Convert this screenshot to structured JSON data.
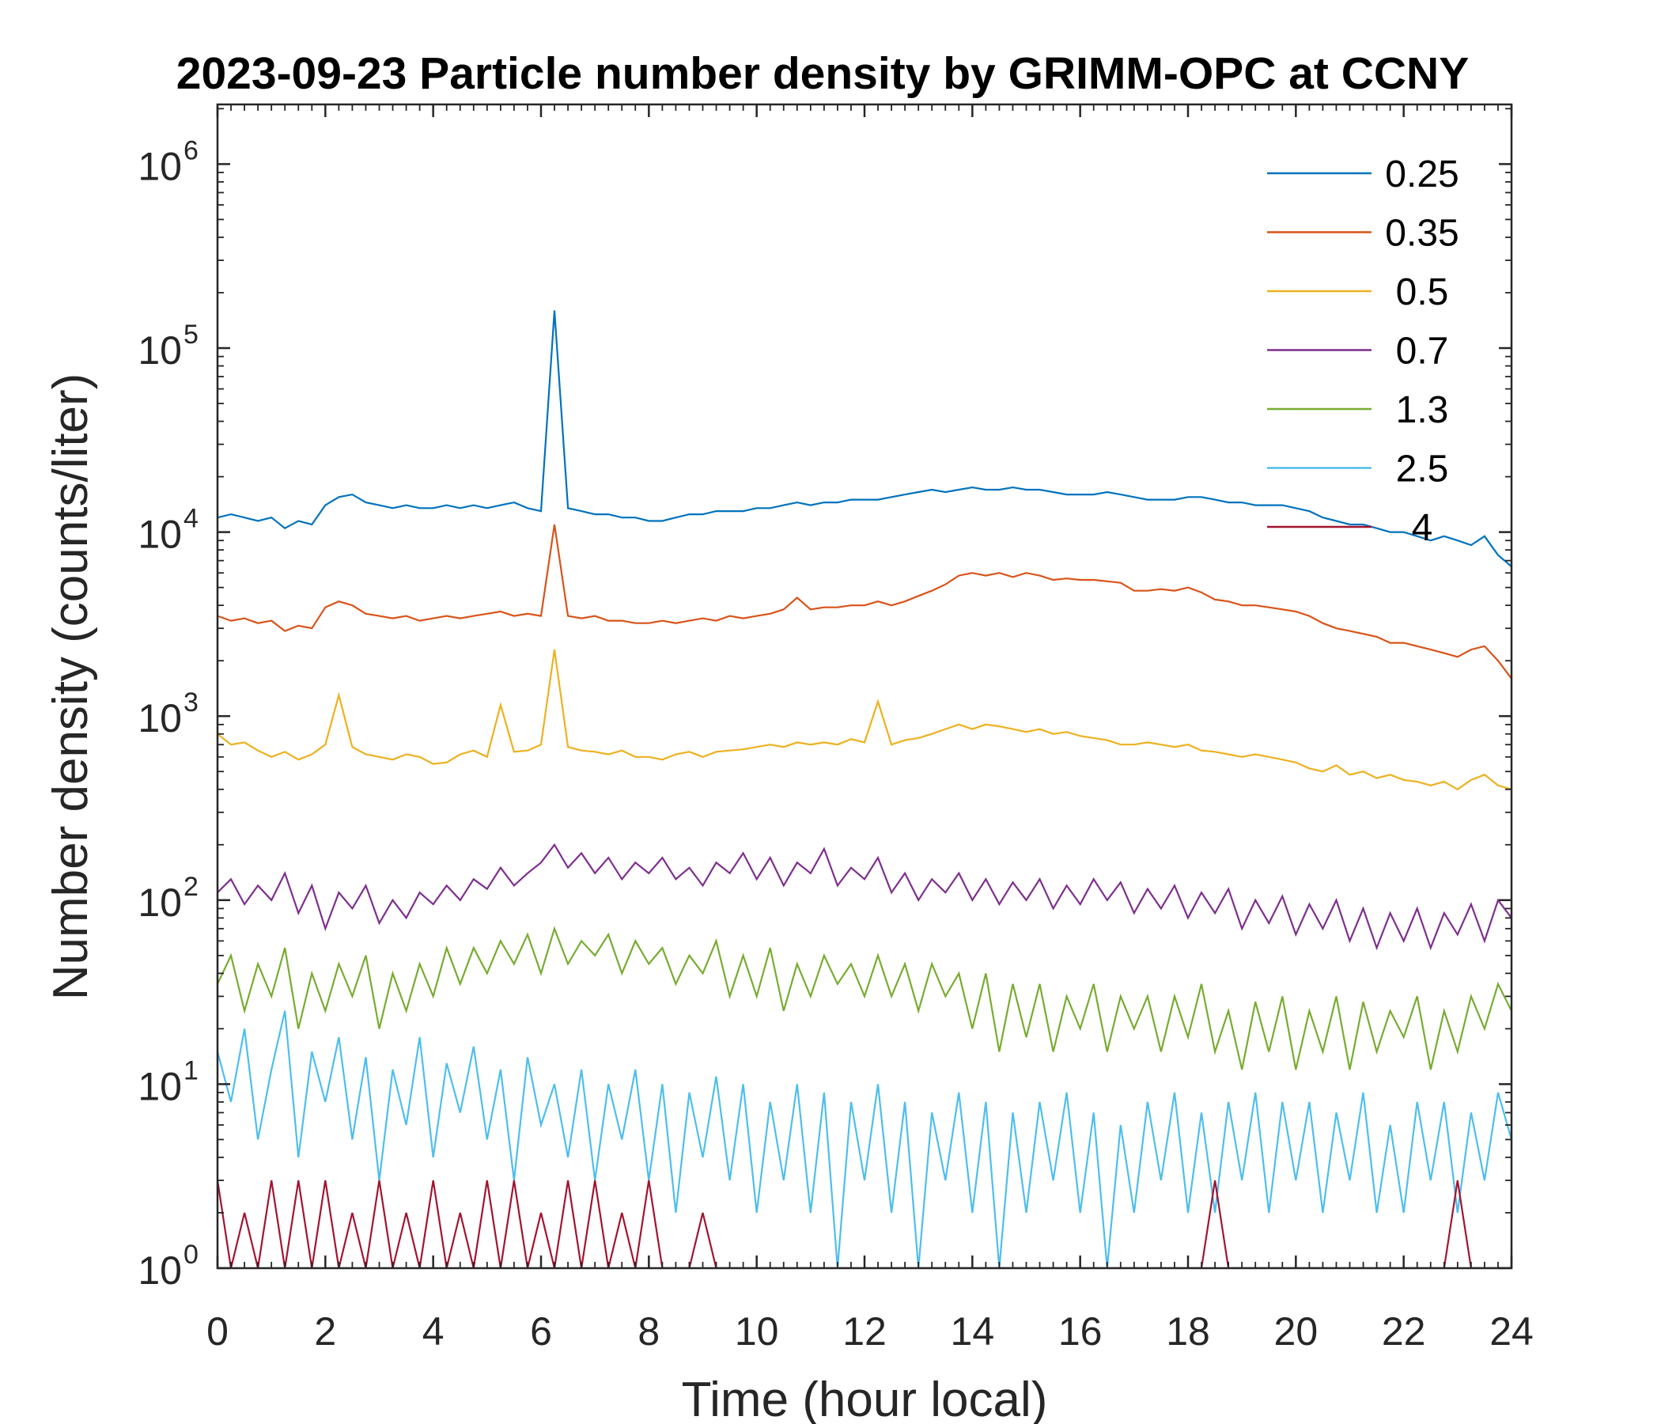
{
  "chart_data": {
    "type": "line",
    "title": "2023-09-23 Particle number density by GRIMM-OPC at CCNY",
    "xlabel": "Time (hour local)",
    "ylabel": "Number density (counts/liter)",
    "xlim": [
      0,
      24
    ],
    "ylim": [
      1,
      2000000
    ],
    "yscale": "log",
    "grid": false,
    "legend_placement": "top-right",
    "x_ticks": [
      "0",
      "2",
      "4",
      "6",
      "8",
      "10",
      "12",
      "14",
      "16",
      "18",
      "20",
      "22",
      "24"
    ],
    "y_ticks": [
      {
        "base": "10",
        "exp": "0"
      },
      {
        "base": "10",
        "exp": "1"
      },
      {
        "base": "10",
        "exp": "2"
      },
      {
        "base": "10",
        "exp": "3"
      },
      {
        "base": "10",
        "exp": "4"
      },
      {
        "base": "10",
        "exp": "5"
      },
      {
        "base": "10",
        "exp": "6"
      }
    ],
    "x_step_hours": 0.25,
    "series": [
      {
        "name": "0.25",
        "color": "#0072BD",
        "values": [
          12000,
          12500,
          12000,
          11500,
          12000,
          10500,
          11500,
          11000,
          14000,
          15500,
          16000,
          14500,
          14000,
          13500,
          14000,
          13500,
          13500,
          14000,
          13500,
          14000,
          13500,
          14000,
          14500,
          13500,
          13000,
          160000,
          13500,
          13000,
          12500,
          12500,
          12000,
          12000,
          11500,
          11500,
          12000,
          12500,
          12500,
          13000,
          13000,
          13000,
          13500,
          13500,
          14000,
          14500,
          14000,
          14500,
          14500,
          15000,
          15000,
          15000,
          15500,
          16000,
          16500,
          17000,
          16500,
          17000,
          17500,
          17000,
          17000,
          17500,
          17000,
          17000,
          16500,
          16000,
          16000,
          16000,
          16500,
          16000,
          15500,
          15000,
          15000,
          15000,
          15500,
          15500,
          15000,
          14500,
          14500,
          14000,
          14000,
          14000,
          13500,
          13000,
          12000,
          11500,
          11000,
          11000,
          10500,
          10000,
          10000,
          9500,
          9000,
          9500,
          9000,
          8500,
          9500,
          7500,
          6500
        ]
      },
      {
        "name": "0.35",
        "color": "#D95319",
        "values": [
          3500,
          3300,
          3400,
          3200,
          3300,
          2900,
          3100,
          3000,
          3900,
          4200,
          4000,
          3600,
          3500,
          3400,
          3500,
          3300,
          3400,
          3500,
          3400,
          3500,
          3600,
          3700,
          3500,
          3600,
          3500,
          11000,
          3500,
          3400,
          3500,
          3300,
          3300,
          3200,
          3200,
          3300,
          3200,
          3300,
          3400,
          3300,
          3500,
          3400,
          3500,
          3600,
          3800,
          4400,
          3800,
          3900,
          3900,
          4000,
          4000,
          4200,
          4000,
          4200,
          4500,
          4800,
          5200,
          5800,
          6000,
          5800,
          6000,
          5700,
          6000,
          5800,
          5500,
          5600,
          5500,
          5500,
          5400,
          5300,
          4800,
          4800,
          4900,
          4800,
          5000,
          4700,
          4300,
          4200,
          4000,
          4000,
          3900,
          3800,
          3700,
          3500,
          3200,
          3000,
          2900,
          2800,
          2700,
          2500,
          2500,
          2400,
          2300,
          2200,
          2100,
          2300,
          2400,
          2000,
          1600
        ]
      },
      {
        "name": "0.5",
        "color": "#EDB120",
        "values": [
          800,
          700,
          720,
          650,
          600,
          640,
          580,
          620,
          700,
          1300,
          680,
          620,
          600,
          580,
          620,
          600,
          550,
          560,
          620,
          650,
          600,
          1150,
          640,
          650,
          700,
          2300,
          680,
          650,
          640,
          620,
          650,
          600,
          600,
          580,
          620,
          640,
          600,
          640,
          650,
          660,
          680,
          700,
          680,
          720,
          700,
          720,
          700,
          750,
          720,
          1200,
          700,
          740,
          760,
          800,
          850,
          900,
          850,
          900,
          880,
          850,
          820,
          850,
          800,
          820,
          780,
          760,
          740,
          700,
          700,
          720,
          700,
          680,
          700,
          650,
          640,
          620,
          600,
          620,
          600,
          580,
          560,
          520,
          500,
          540,
          480,
          500,
          460,
          480,
          450,
          440,
          420,
          440,
          400,
          450,
          480,
          420,
          400
        ]
      },
      {
        "name": "0.7",
        "color": "#7E2F8E",
        "values": [
          110,
          130,
          95,
          120,
          100,
          140,
          85,
          120,
          70,
          110,
          90,
          120,
          75,
          100,
          80,
          110,
          95,
          120,
          100,
          130,
          115,
          150,
          120,
          140,
          160,
          200,
          150,
          180,
          140,
          170,
          130,
          160,
          140,
          170,
          130,
          150,
          120,
          160,
          140,
          180,
          130,
          170,
          120,
          160,
          140,
          190,
          120,
          150,
          130,
          170,
          110,
          140,
          100,
          130,
          110,
          140,
          100,
          130,
          95,
          125,
          100,
          130,
          90,
          120,
          95,
          130,
          100,
          125,
          85,
          115,
          90,
          120,
          80,
          110,
          85,
          115,
          70,
          100,
          75,
          105,
          65,
          95,
          70,
          100,
          60,
          90,
          55,
          85,
          60,
          90,
          55,
          85,
          65,
          95,
          60,
          100,
          80
        ]
      },
      {
        "name": "1.3",
        "color": "#77AC30",
        "values": [
          35,
          50,
          25,
          45,
          30,
          55,
          20,
          40,
          25,
          45,
          30,
          50,
          20,
          40,
          25,
          45,
          30,
          55,
          35,
          55,
          40,
          60,
          45,
          65,
          40,
          70,
          45,
          60,
          50,
          65,
          40,
          60,
          45,
          55,
          35,
          50,
          40,
          60,
          30,
          50,
          30,
          55,
          25,
          45,
          30,
          50,
          35,
          45,
          30,
          50,
          30,
          45,
          25,
          45,
          30,
          40,
          20,
          40,
          15,
          35,
          18,
          35,
          15,
          30,
          20,
          35,
          15,
          30,
          20,
          30,
          15,
          30,
          18,
          35,
          15,
          25,
          12,
          28,
          15,
          30,
          12,
          25,
          15,
          30,
          12,
          28,
          15,
          25,
          18,
          30,
          12,
          25,
          15,
          30,
          20,
          35,
          25
        ]
      },
      {
        "name": "2.5",
        "color": "#4DBEEE",
        "values": [
          15,
          8,
          20,
          5,
          12,
          25,
          4,
          15,
          8,
          18,
          5,
          14,
          3,
          12,
          6,
          18,
          4,
          13,
          7,
          16,
          5,
          12,
          3,
          14,
          6,
          10,
          4,
          12,
          3,
          10,
          5,
          12,
          3,
          10,
          2,
          9,
          4,
          11,
          3,
          10,
          2,
          8,
          3,
          10,
          2,
          9,
          1,
          8,
          3,
          10,
          2,
          8,
          1,
          7,
          3,
          9,
          2,
          8,
          1,
          7,
          2,
          8,
          3,
          9,
          2,
          7,
          1,
          6,
          2,
          8,
          3,
          9,
          2,
          7,
          2,
          8,
          3,
          9,
          2,
          8,
          3,
          8,
          2,
          7,
          3,
          9,
          2,
          6,
          2,
          8,
          3,
          8,
          2,
          7,
          3,
          9,
          5
        ]
      },
      {
        "name": "4",
        "color": "#A2142F",
        "values": [
          3,
          1,
          2,
          1,
          3,
          1,
          3,
          1,
          3,
          1,
          2,
          1,
          3,
          1,
          2,
          1,
          3,
          1,
          2,
          1,
          3,
          1,
          3,
          1,
          2,
          1,
          3,
          1,
          3,
          1,
          2,
          1,
          3,
          1,
          1,
          1,
          2,
          1,
          1,
          1,
          1,
          1,
          1,
          1,
          1,
          1,
          1,
          1,
          1,
          1,
          1,
          1,
          1,
          1,
          1,
          1,
          1,
          1,
          1,
          1,
          1,
          1,
          1,
          1,
          1,
          1,
          1,
          1,
          1,
          1,
          1,
          1,
          1,
          1,
          3,
          1,
          1,
          1,
          1,
          1,
          1,
          1,
          1,
          1,
          1,
          1,
          1,
          1,
          1,
          1,
          1,
          1,
          3,
          1,
          1,
          1,
          1
        ]
      }
    ]
  }
}
